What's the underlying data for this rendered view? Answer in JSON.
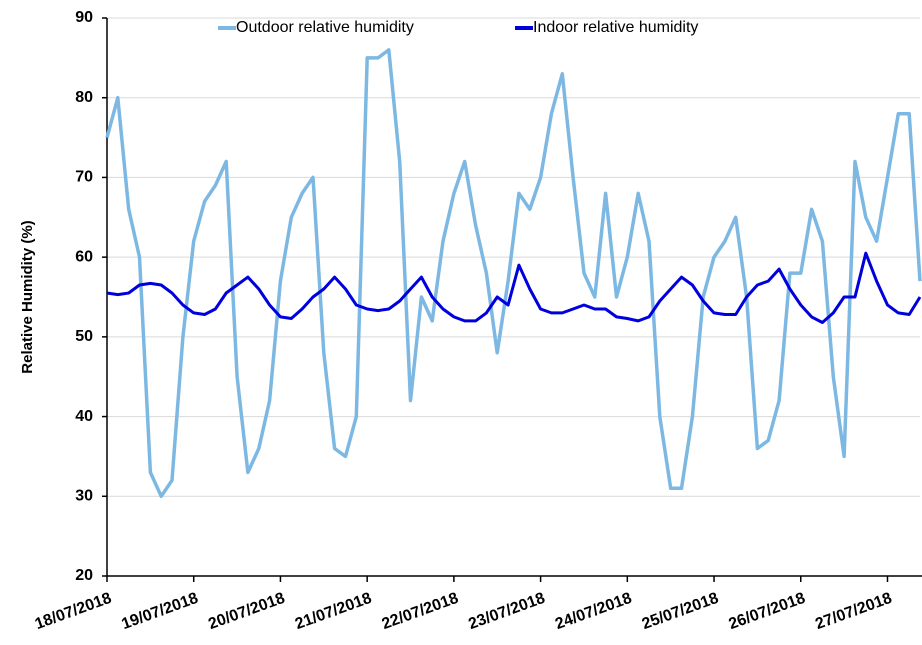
{
  "chart_data": {
    "type": "line",
    "y_label": "Relative Humidity (%)",
    "categories": [
      "18/07/2018",
      null,
      null,
      null,
      null,
      null,
      null,
      null,
      "19/07/2018",
      null,
      null,
      null,
      null,
      null,
      null,
      null,
      "20/07/2018",
      null,
      null,
      null,
      null,
      null,
      null,
      null,
      "21/07/2018",
      null,
      null,
      null,
      null,
      null,
      null,
      null,
      "22/07/2018",
      null,
      null,
      null,
      null,
      null,
      null,
      null,
      "23/07/2018",
      null,
      null,
      null,
      null,
      null,
      null,
      null,
      "24/07/2018",
      null,
      null,
      null,
      null,
      null,
      null,
      null,
      "25/07/2018",
      null,
      null,
      null,
      null,
      null,
      null,
      null,
      "26/07/2018",
      null,
      null,
      null,
      null,
      null,
      null,
      null,
      "27/07/2018",
      null,
      null,
      null
    ],
    "series": [
      {
        "name": "Outdoor relative humidity",
        "color": "#7db8e3",
        "values": [
          75,
          80,
          66,
          60,
          33,
          30,
          32,
          50,
          62,
          67,
          69,
          72,
          45,
          33,
          36,
          42,
          57,
          65,
          68,
          70,
          48,
          36,
          35,
          40,
          85,
          85,
          86,
          72,
          42,
          55,
          52,
          62,
          68,
          72,
          64,
          58,
          48,
          57,
          68,
          66,
          70,
          78,
          83,
          70,
          58,
          55,
          68,
          55,
          60,
          68,
          62,
          40,
          31,
          31,
          40,
          55,
          60,
          62,
          65,
          55,
          36,
          37,
          42,
          58,
          58,
          66,
          62,
          45,
          35,
          72,
          65,
          62,
          70,
          78,
          78,
          57
        ]
      },
      {
        "name": "Indoor relative humidity",
        "color": "#0000dd",
        "values": [
          55.5,
          55.3,
          55.5,
          56.5,
          56.7,
          56.5,
          55.5,
          54,
          53,
          52.8,
          53.5,
          55.5,
          56.5,
          57.5,
          56,
          54,
          52.5,
          52.3,
          53.5,
          55,
          56,
          57.5,
          56,
          54,
          53.5,
          53.3,
          53.5,
          54.5,
          56,
          57.5,
          55,
          53.5,
          52.5,
          52,
          52,
          53,
          55,
          54,
          59,
          56,
          53.5,
          53,
          53,
          53.5,
          54,
          53.5,
          53.5,
          52.5,
          52.3,
          52,
          52.5,
          54.5,
          56,
          57.5,
          56.5,
          54.5,
          53,
          52.8,
          52.8,
          55,
          56.5,
          57,
          58.5,
          56,
          54,
          52.5,
          51.8,
          53,
          55,
          55,
          60.5,
          57,
          54,
          53,
          52.8,
          55
        ]
      }
    ],
    "ylim": [
      20,
      90
    ],
    "yticks": [
      20,
      30,
      40,
      50,
      60,
      70,
      80,
      90
    ],
    "grid": true,
    "legend": "top"
  }
}
